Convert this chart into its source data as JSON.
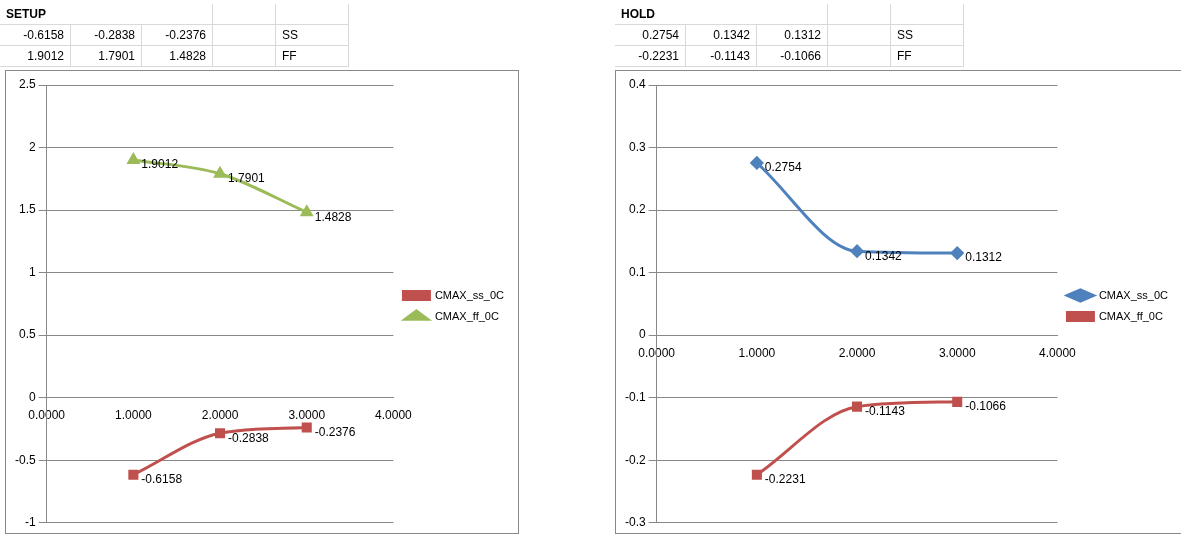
{
  "chart_data": [
    {
      "type": "line",
      "title": "SETUP",
      "annotations": [
        "-0.6158",
        "-0.2838",
        "-0.2376",
        "SS",
        "1.9012",
        "1.7901",
        "1.4828",
        "FF"
      ],
      "x": [
        1,
        2,
        3
      ],
      "xlim": [
        0,
        4
      ],
      "xticks": [
        {
          "value": 0,
          "label": "0.0000"
        },
        {
          "value": 1,
          "label": "1.0000"
        },
        {
          "value": 2,
          "label": "2.0000"
        },
        {
          "value": 3,
          "label": "3.0000"
        },
        {
          "value": 4,
          "label": "4.0000"
        }
      ],
      "ylim": [
        -1,
        2.5
      ],
      "yticks": [
        2.5,
        2,
        1.5,
        1,
        0.5,
        0,
        -0.5,
        -1
      ],
      "grid": "y",
      "legend": "right",
      "data_labels": true,
      "line_style": "solid",
      "series": [
        {
          "name": "CMAX_ss_0C",
          "color": "#c0504d",
          "marker": "square",
          "values": [
            -0.6158,
            -0.2838,
            -0.2376
          ]
        },
        {
          "name": "CMAX_ff_0C",
          "color": "#9bbb59",
          "marker": "triangle",
          "values": [
            1.9012,
            1.7901,
            1.4828
          ]
        }
      ]
    },
    {
      "type": "line",
      "title": "HOLD",
      "annotations": [
        "0.2754",
        "0.1342",
        "0.1312",
        "SS",
        "-0.2231",
        "-0.1143",
        "-0.1066",
        "FF"
      ],
      "x": [
        1,
        2,
        3
      ],
      "xlim": [
        0,
        4
      ],
      "xticks": [
        {
          "value": 0,
          "label": "0.0000"
        },
        {
          "value": 1,
          "label": "1.0000"
        },
        {
          "value": 2,
          "label": "2.0000"
        },
        {
          "value": 3,
          "label": "3.0000"
        },
        {
          "value": 4,
          "label": "4.0000"
        }
      ],
      "ylim": [
        -0.3,
        0.4
      ],
      "yticks": [
        0.4,
        0.3,
        0.2,
        0.1,
        0,
        -0.1,
        -0.2,
        -0.3
      ],
      "grid": "y",
      "legend": "right",
      "data_labels": true,
      "line_style": "solid",
      "series": [
        {
          "name": "CMAX_ss_0C",
          "color": "#4f81bd",
          "marker": "diamond",
          "values": [
            0.2754,
            0.1342,
            0.1312
          ]
        },
        {
          "name": "CMAX_ff_0C",
          "color": "#c0504d",
          "marker": "square",
          "values": [
            -0.2231,
            -0.1143,
            -0.1066
          ]
        }
      ]
    }
  ]
}
